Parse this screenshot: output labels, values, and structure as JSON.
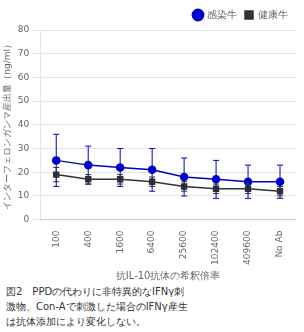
{
  "chart_data": {
    "type": "line",
    "xlabel": "抗IL-10抗体の希釈倍率",
    "ylabel": "インターフェロンガンマ産出量（ng/ml）",
    "annotations": [
      "図2　PPDの代わりに非特異的なIFNγ刺",
      "激物、Con-Aで刺激した場合のIFNγ産生",
      "は抗体添加により変化しない。"
    ],
    "categories": [
      "100",
      "400",
      "1600",
      "6400",
      "25600",
      "102400",
      "409600",
      "No Ab"
    ],
    "series": [
      {
        "name": "感染牛",
        "color": "#0000cc",
        "marker": "circle",
        "values": [
          25,
          23,
          22,
          21,
          18,
          17,
          16,
          16
        ],
        "errors": [
          11,
          8,
          8,
          9,
          8,
          8,
          7,
          7
        ]
      },
      {
        "name": "健康牛",
        "color": "#333333",
        "marker": "square",
        "values": [
          19,
          17,
          17,
          16,
          14,
          13,
          13,
          12
        ],
        "errors": [
          3,
          2,
          2,
          2,
          2,
          2,
          2,
          2
        ]
      }
    ],
    "ylim": [
      0,
      80
    ],
    "yticks": [
      0,
      10,
      20,
      30,
      40,
      50,
      60,
      70,
      80
    ],
    "grid": true,
    "legend": "upper right"
  }
}
